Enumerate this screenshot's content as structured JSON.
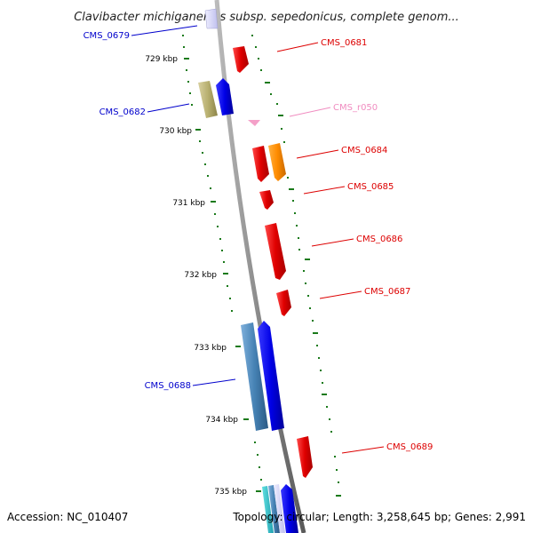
{
  "title": "Clavibacter michiganensis subsp. sepedonicus, complete genom...",
  "footer": {
    "accession": "Accession: NC_010407",
    "topology": "Topology: circular; Length: 3,258,645 bp; Genes: 2,991"
  },
  "ticks": [
    "729 kbp",
    "730 kbp",
    "731 kbp",
    "732 kbp",
    "733 kbp",
    "734 kbp",
    "735 kbp"
  ],
  "genes": [
    {
      "name": "CMS_0679",
      "color": "#0000cc"
    },
    {
      "name": "CMS_0681",
      "color": "#dd0000"
    },
    {
      "name": "CMS_0682",
      "color": "#0000cc"
    },
    {
      "name": "CMS_r050",
      "color": "#f08cc0"
    },
    {
      "name": "CMS_0684",
      "color": "#dd0000"
    },
    {
      "name": "CMS_0685",
      "color": "#dd0000"
    },
    {
      "name": "CMS_0686",
      "color": "#dd0000"
    },
    {
      "name": "CMS_0687",
      "color": "#dd0000"
    },
    {
      "name": "CMS_0688",
      "color": "#0000cc"
    },
    {
      "name": "CMS_0689",
      "color": "#dd0000"
    }
  ],
  "colors": {
    "backbone": "#888888",
    "tick": "#1a7a1a",
    "forward_strand": "#ee0000",
    "reverse_strand": "#0000ee",
    "orange_gene": "#ff8c00",
    "olive_gene": "#b5ad6a",
    "steel_gene": "#4682b4",
    "rna": "#f4a0c8"
  }
}
